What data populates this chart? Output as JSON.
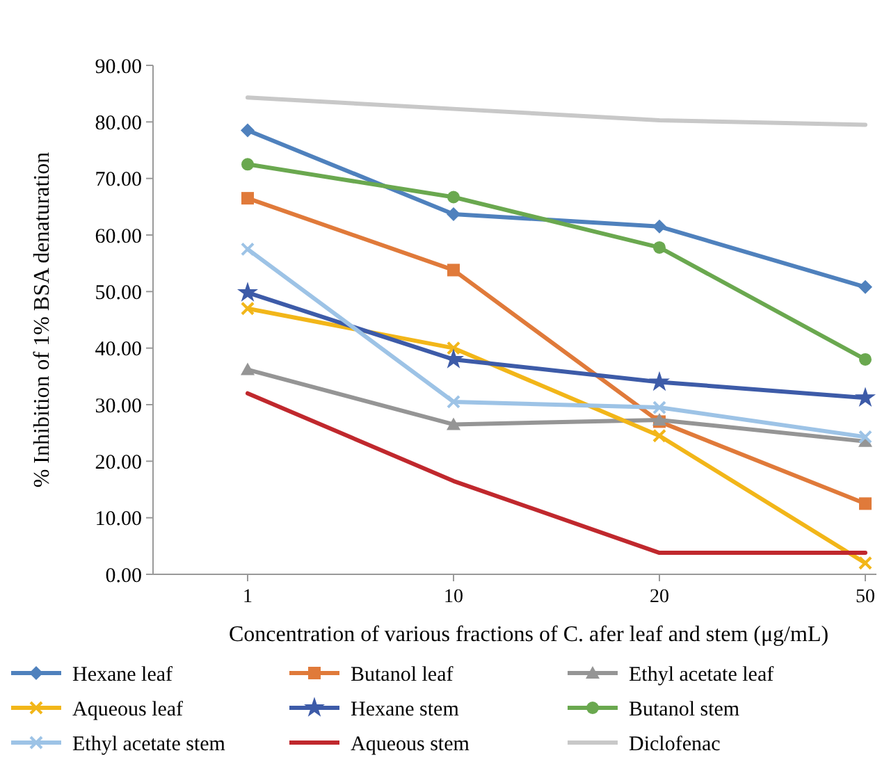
{
  "chart_data": {
    "type": "line",
    "xlabel": "Concentration of various fractions of C. afer leaf and stem (μg/mL)",
    "ylabel": "% Inhibition of 1% BSA denaturation",
    "categories": [
      "1",
      "10",
      "20",
      "50"
    ],
    "ylim": [
      0,
      90
    ],
    "yticks": [
      {
        "value": 0,
        "label": "0.00"
      },
      {
        "value": 10,
        "label": "10.00"
      },
      {
        "value": 20,
        "label": "20.00"
      },
      {
        "value": 30,
        "label": "30.00"
      },
      {
        "value": 40,
        "label": "40.00"
      },
      {
        "value": 50,
        "label": "50.00"
      },
      {
        "value": 60,
        "label": "60.00"
      },
      {
        "value": 70,
        "label": "70.00"
      },
      {
        "value": 80,
        "label": "80.00"
      },
      {
        "value": 90,
        "label": "90.00"
      }
    ],
    "grid": false,
    "legend": "bottom",
    "series": [
      {
        "name": "Hexane leaf",
        "color": "#4f81bd",
        "marker": "diamond",
        "values": [
          78.5,
          63.7,
          61.5,
          50.8
        ]
      },
      {
        "name": "Butanol leaf",
        "color": "#e07a3a",
        "marker": "square",
        "values": [
          66.5,
          53.8,
          27,
          12.5
        ]
      },
      {
        "name": "Ethyl acetate leaf",
        "color": "#959595",
        "marker": "triangle",
        "values": [
          36.2,
          26.5,
          27.3,
          23.5
        ]
      },
      {
        "name": "Aqueous leaf",
        "color": "#f2b619",
        "marker": "cross",
        "values": [
          47,
          40,
          24.5,
          2
        ]
      },
      {
        "name": "Hexane stem",
        "color": "#3d5ba8",
        "marker": "star",
        "values": [
          49.8,
          38,
          34,
          31.2
        ]
      },
      {
        "name": "Butanol stem",
        "color": "#6aa84f",
        "marker": "circle",
        "values": [
          72.5,
          66.7,
          57.8,
          38
        ]
      },
      {
        "name": "Ethyl acetate stem",
        "color": "#9dc3e6",
        "marker": "cross",
        "values": [
          57.5,
          30.5,
          29.5,
          24.3
        ]
      },
      {
        "name": "Aqueous stem",
        "color": "#c0282d",
        "marker": "none",
        "values": [
          32,
          16.5,
          3.8,
          3.8
        ]
      },
      {
        "name": "Diclofenac",
        "color": "#c8c8c8",
        "marker": "none",
        "values": [
          84.3,
          82.3,
          80.3,
          79.5
        ]
      }
    ]
  }
}
